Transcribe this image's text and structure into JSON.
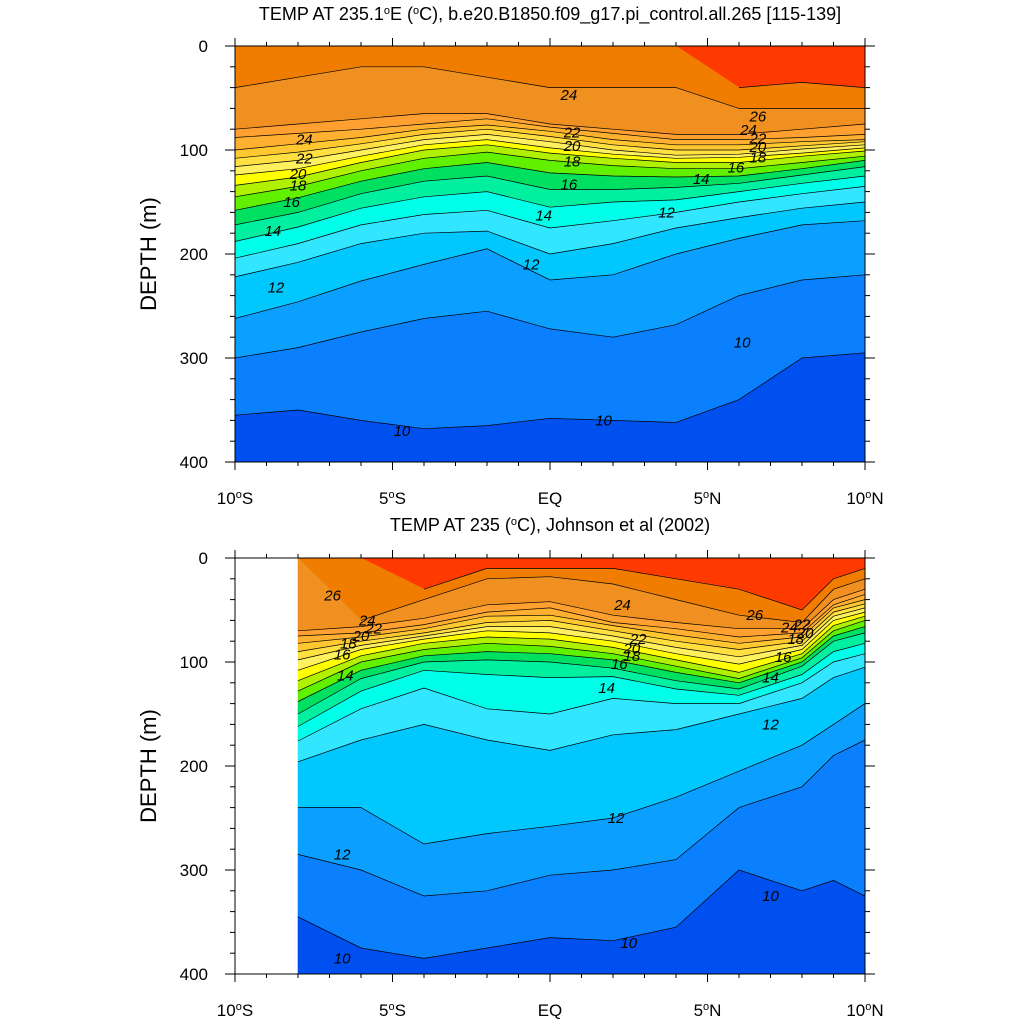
{
  "colors": {
    "14": "#aff02d",
    "15": "#ffff00",
    "16": "#ffff00",
    "17": "#ffff00",
    "18": "#7cfc00",
    "19": "#00e000",
    "20": "#00f080",
    "21": "#ffe000",
    "22": "#ffd000",
    "23": "#ffc000",
    "24": "#ffb040",
    "25": "#ffa040",
    "26": "#ff9030",
    "27": "#ff8000",
    "28": "#ff3000",
    "below_10": "#0055ff",
    "below_9": "#0000cc"
  },
  "chart_data": [
    {
      "type": "heatmap",
      "title": "TEMP AT 235.1°E (°C), b.e20.B1850.f09_g17.pi_control.all.265 [115-139]",
      "ylabel": "DEPTH (m)",
      "xlabel": "",
      "xlim": [
        -10,
        10
      ],
      "ylim": [
        400,
        0
      ],
      "x_ticks": [
        {
          "value": -10,
          "label": "10°S"
        },
        {
          "value": -5,
          "label": "5°S"
        },
        {
          "value": 0,
          "label": "EQ"
        },
        {
          "value": 5,
          "label": "5°N"
        },
        {
          "value": 10,
          "label": "10°N"
        }
      ],
      "y_ticks": [
        {
          "value": 0,
          "label": "0"
        },
        {
          "value": 100,
          "label": "100"
        },
        {
          "value": 200,
          "label": "200"
        },
        {
          "value": 300,
          "label": "300"
        },
        {
          "value": 400,
          "label": "400"
        }
      ],
      "data_x_range": [
        -10,
        10
      ],
      "x": [
        -10,
        -8,
        -6,
        -4,
        -2,
        0,
        2,
        4,
        6,
        8,
        10
      ],
      "contour_levels": [
        10,
        11,
        12,
        13,
        14,
        15,
        16,
        17,
        18,
        19,
        20,
        21,
        22,
        23,
        24,
        25,
        26
      ],
      "isotherm_depths": {
        "26": [
          null,
          null,
          null,
          null,
          null,
          null,
          null,
          null,
          40,
          35,
          40
        ],
        "25": [
          40,
          30,
          20,
          20,
          30,
          40,
          40,
          40,
          60,
          60,
          60
        ],
        "24": [
          80,
          75,
          70,
          65,
          65,
          75,
          80,
          85,
          85,
          80,
          75
        ],
        "23": [
          88,
          84,
          80,
          75,
          70,
          78,
          84,
          90,
          90,
          88,
          85
        ],
        "22": [
          100,
          94,
          88,
          80,
          76,
          82,
          90,
          95,
          95,
          92,
          90
        ],
        "21": [
          108,
          102,
          94,
          85,
          80,
          87,
          95,
          100,
          100,
          96,
          92
        ],
        "20": [
          116,
          110,
          100,
          90,
          85,
          92,
          100,
          105,
          104,
          99,
          95
        ],
        "19": [
          124,
          118,
          106,
          95,
          90,
          98,
          104,
          108,
          107,
          103,
          98
        ],
        "18": [
          134,
          126,
          112,
          100,
          95,
          103,
          108,
          112,
          112,
          106,
          101
        ],
        "17": [
          145,
          135,
          120,
          108,
          102,
          110,
          115,
          118,
          118,
          112,
          106
        ],
        "16": [
          158,
          146,
          130,
          118,
          112,
          122,
          125,
          126,
          125,
          118,
          110
        ],
        "15": [
          172,
          160,
          142,
          130,
          125,
          138,
          138,
          136,
          132,
          124,
          116
        ],
        "14": [
          188,
          174,
          156,
          145,
          140,
          155,
          150,
          148,
          140,
          132,
          125
        ],
        "13": [
          204,
          190,
          172,
          162,
          158,
          175,
          168,
          160,
          150,
          142,
          135
        ],
        "12": [
          222,
          208,
          190,
          180,
          178,
          200,
          190,
          175,
          165,
          156,
          150
        ],
        "11": [
          262,
          246,
          226,
          210,
          195,
          225,
          220,
          200,
          185,
          172,
          168
        ],
        "10": [
          300,
          290,
          275,
          262,
          255,
          272,
          280,
          268,
          240,
          225,
          220
        ]
      },
      "deep_10_depth": [
        355,
        350,
        360,
        368,
        365,
        358,
        360,
        362,
        340,
        300,
        295
      ],
      "contour_labels": [
        {
          "text": "24",
          "x": -7.8,
          "y": 90
        },
        {
          "text": "22",
          "x": -7.8,
          "y": 108
        },
        {
          "text": "20",
          "x": -8.0,
          "y": 123
        },
        {
          "text": "18",
          "x": -8.0,
          "y": 134
        },
        {
          "text": "16",
          "x": -8.2,
          "y": 150
        },
        {
          "text": "14",
          "x": -8.8,
          "y": 178
        },
        {
          "text": "12",
          "x": -8.7,
          "y": 232
        },
        {
          "text": "24",
          "x": 0.6,
          "y": 47
        },
        {
          "text": "22",
          "x": 0.7,
          "y": 83
        },
        {
          "text": "20",
          "x": 0.7,
          "y": 96
        },
        {
          "text": "18",
          "x": 0.7,
          "y": 111
        },
        {
          "text": "16",
          "x": 0.6,
          "y": 133
        },
        {
          "text": "14",
          "x": -0.2,
          "y": 163
        },
        {
          "text": "12",
          "x": -0.6,
          "y": 210
        },
        {
          "text": "26",
          "x": 6.6,
          "y": 68
        },
        {
          "text": "24",
          "x": 6.3,
          "y": 81
        },
        {
          "text": "22",
          "x": 6.6,
          "y": 89
        },
        {
          "text": "20",
          "x": 6.6,
          "y": 97
        },
        {
          "text": "18",
          "x": 6.6,
          "y": 107
        },
        {
          "text": "16",
          "x": 5.9,
          "y": 117
        },
        {
          "text": "14",
          "x": 4.8,
          "y": 128
        },
        {
          "text": "12",
          "x": 3.7,
          "y": 160
        },
        {
          "text": "10",
          "x": 6.1,
          "y": 285
        },
        {
          "text": "10",
          "x": -4.7,
          "y": 370
        },
        {
          "text": "10",
          "x": 1.7,
          "y": 360
        }
      ]
    },
    {
      "type": "heatmap",
      "title": "TEMP AT 235 (°C), Johnson et al (2002)",
      "ylabel": "DEPTH (m)",
      "xlabel": "",
      "xlim": [
        -10,
        10
      ],
      "ylim": [
        400,
        0
      ],
      "x_ticks": [
        {
          "value": -10,
          "label": "10°S"
        },
        {
          "value": -5,
          "label": "5°S"
        },
        {
          "value": 0,
          "label": "EQ"
        },
        {
          "value": 5,
          "label": "5°N"
        },
        {
          "value": 10,
          "label": "10°N"
        }
      ],
      "y_ticks": [
        {
          "value": 0,
          "label": "0"
        },
        {
          "value": 100,
          "label": "100"
        },
        {
          "value": 200,
          "label": "200"
        },
        {
          "value": 300,
          "label": "300"
        },
        {
          "value": 400,
          "label": "400"
        }
      ],
      "data_x_range": [
        -8,
        10
      ],
      "x": [
        -8,
        -6,
        -4,
        -2,
        0,
        2,
        4,
        6,
        8,
        9,
        10
      ],
      "contour_levels": [
        10,
        11,
        12,
        13,
        14,
        15,
        16,
        17,
        18,
        19,
        20,
        21,
        22,
        23,
        24,
        25,
        26
      ],
      "isotherm_depths": {
        "26": [
          null,
          null,
          30,
          10,
          10,
          10,
          20,
          30,
          50,
          20,
          10
        ],
        "25": [
          null,
          60,
          40,
          20,
          18,
          25,
          40,
          55,
          62,
          30,
          20
        ],
        "24": [
          70,
          66,
          58,
          45,
          42,
          55,
          62,
          68,
          68,
          40,
          30
        ],
        "23": [
          75,
          72,
          64,
          52,
          48,
          62,
          68,
          76,
          72,
          45,
          35
        ],
        "22": [
          82,
          76,
          68,
          56,
          55,
          65,
          74,
          82,
          76,
          48,
          40
        ],
        "21": [
          90,
          80,
          72,
          62,
          60,
          70,
          80,
          88,
          80,
          52,
          44
        ],
        "20": [
          98,
          84,
          75,
          66,
          66,
          75,
          86,
          95,
          84,
          56,
          48
        ],
        "19": [
          108,
          88,
          78,
          70,
          72,
          80,
          92,
          102,
          88,
          60,
          52
        ],
        "18": [
          118,
          94,
          82,
          76,
          78,
          86,
          98,
          110,
          92,
          65,
          56
        ],
        "17": [
          128,
          100,
          88,
          82,
          85,
          92,
          104,
          116,
          96,
          70,
          60
        ],
        "16": [
          138,
          108,
          94,
          90,
          92,
          98,
          110,
          120,
          100,
          75,
          66
        ],
        "15": [
          150,
          116,
          100,
          98,
          100,
          106,
          118,
          126,
          104,
          80,
          72
        ],
        "14": [
          162,
          128,
          108,
          112,
          115,
          114,
          126,
          132,
          112,
          90,
          82
        ],
        "13": [
          176,
          145,
          125,
          145,
          150,
          135,
          140,
          140,
          120,
          100,
          92
        ],
        "12": [
          196,
          175,
          160,
          175,
          185,
          170,
          165,
          150,
          135,
          115,
          105
        ],
        "11": [
          240,
          240,
          275,
          265,
          258,
          250,
          230,
          205,
          180,
          160,
          140
        ],
        "10": [
          285,
          300,
          325,
          320,
          305,
          300,
          290,
          240,
          220,
          190,
          175
        ]
      },
      "deep_10_depth": [
        345,
        375,
        385,
        375,
        365,
        368,
        355,
        300,
        320,
        310,
        325
      ],
      "contour_labels": [
        {
          "text": "26",
          "x": -6.9,
          "y": 36
        },
        {
          "text": "24",
          "x": -5.8,
          "y": 60
        },
        {
          "text": "22",
          "x": -5.6,
          "y": 68
        },
        {
          "text": "20",
          "x": -6.0,
          "y": 75
        },
        {
          "text": "18",
          "x": -6.4,
          "y": 82
        },
        {
          "text": "16",
          "x": -6.6,
          "y": 93
        },
        {
          "text": "14",
          "x": -6.5,
          "y": 113
        },
        {
          "text": "12",
          "x": -6.6,
          "y": 285
        },
        {
          "text": "10",
          "x": -6.6,
          "y": 385
        },
        {
          "text": "24",
          "x": 2.3,
          "y": 45
        },
        {
          "text": "22",
          "x": 2.8,
          "y": 78
        },
        {
          "text": "20",
          "x": 2.6,
          "y": 87
        },
        {
          "text": "18",
          "x": 2.6,
          "y": 94
        },
        {
          "text": "16",
          "x": 2.2,
          "y": 102
        },
        {
          "text": "14",
          "x": 1.8,
          "y": 125
        },
        {
          "text": "12",
          "x": 2.1,
          "y": 250
        },
        {
          "text": "10",
          "x": 2.5,
          "y": 370
        },
        {
          "text": "26",
          "x": 6.5,
          "y": 55
        },
        {
          "text": "24",
          "x": 7.6,
          "y": 67
        },
        {
          "text": "22",
          "x": 8.0,
          "y": 64
        },
        {
          "text": "20",
          "x": 8.1,
          "y": 72
        },
        {
          "text": "18",
          "x": 7.8,
          "y": 78
        },
        {
          "text": "16",
          "x": 7.4,
          "y": 95
        },
        {
          "text": "14",
          "x": 7.0,
          "y": 115
        },
        {
          "text": "12",
          "x": 7.0,
          "y": 160
        },
        {
          "text": "10",
          "x": 7.0,
          "y": 325
        }
      ]
    }
  ]
}
